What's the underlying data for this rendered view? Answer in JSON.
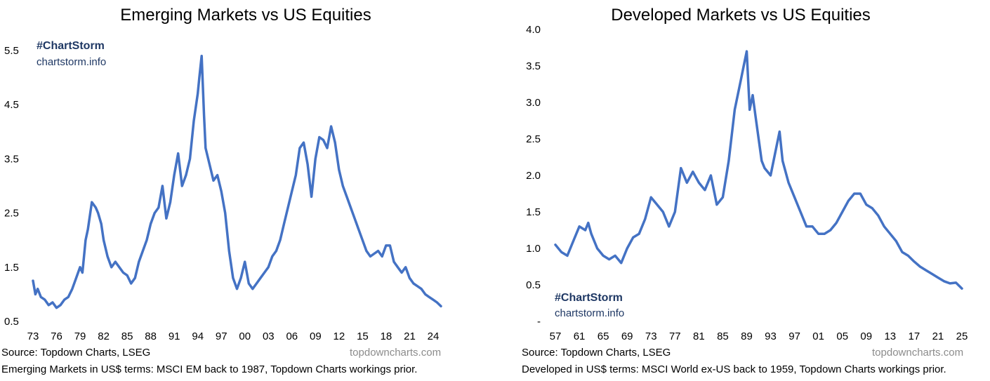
{
  "chart_data": [
    {
      "type": "line",
      "title": "Emerging Markets vs US Equities",
      "ylim": [
        0.5,
        5.5
      ],
      "y_ticks": [
        "0.5",
        "1.5",
        "2.5",
        "3.5",
        "4.5",
        "5.5"
      ],
      "x_ticks": [
        "73",
        "76",
        "79",
        "82",
        "85",
        "88",
        "91",
        "94",
        "97",
        "00",
        "03",
        "06",
        "09",
        "12",
        "15",
        "18",
        "21",
        "24"
      ],
      "grid": false,
      "color": "#4472c4",
      "series": [
        {
          "x": [
            1973.0,
            1973.3,
            1973.6,
            1974.0,
            1974.5,
            1975.0,
            1975.5,
            1976.0,
            1976.5,
            1977.0,
            1977.5,
            1978.0,
            1978.5,
            1979.0,
            1979.3,
            1979.7,
            1980.0,
            1980.5,
            1981.0,
            1981.3,
            1981.7,
            1982.0,
            1982.5,
            1983.0,
            1983.5,
            1984.0,
            1984.5,
            1985.0,
            1985.5,
            1986.0,
            1986.5,
            1987.0,
            1987.5,
            1988.0,
            1988.5,
            1989.0,
            1989.5,
            1990.0,
            1990.5,
            1991.0,
            1991.5,
            1992.0,
            1992.5,
            1993.0,
            1993.5,
            1994.0,
            1994.2,
            1994.5,
            1994.8,
            1995.0,
            1995.5,
            1996.0,
            1996.5,
            1997.0,
            1997.5,
            1998.0,
            1998.5,
            1999.0,
            1999.5,
            2000.0,
            2000.5,
            2001.0,
            2001.5,
            2002.0,
            2002.5,
            2003.0,
            2003.5,
            2004.0,
            2004.5,
            2005.0,
            2005.5,
            2006.0,
            2006.5,
            2007.0,
            2007.5,
            2008.0,
            2008.5,
            2009.0,
            2009.5,
            2010.0,
            2010.5,
            2011.0,
            2011.5,
            2012.0,
            2012.5,
            2013.0,
            2013.5,
            2014.0,
            2014.5,
            2015.0,
            2015.5,
            2016.0,
            2016.5,
            2017.0,
            2017.5,
            2018.0,
            2018.5,
            2019.0,
            2019.5,
            2020.0,
            2020.5,
            2021.0,
            2021.5,
            2022.0,
            2022.5,
            2023.0,
            2023.5,
            2024.0,
            2024.5,
            2025.0
          ],
          "values": [
            1.25,
            1.0,
            1.1,
            0.95,
            0.9,
            0.8,
            0.85,
            0.75,
            0.8,
            0.9,
            0.95,
            1.1,
            1.3,
            1.5,
            1.4,
            2.0,
            2.2,
            2.7,
            2.6,
            2.5,
            2.3,
            2.0,
            1.7,
            1.5,
            1.6,
            1.5,
            1.4,
            1.35,
            1.2,
            1.3,
            1.6,
            1.8,
            2.0,
            2.3,
            2.5,
            2.6,
            3.0,
            2.4,
            2.7,
            3.2,
            3.6,
            3.0,
            3.2,
            3.5,
            4.2,
            4.7,
            5.0,
            5.4,
            4.3,
            3.7,
            3.4,
            3.1,
            3.2,
            2.9,
            2.5,
            1.8,
            1.3,
            1.1,
            1.3,
            1.6,
            1.2,
            1.1,
            1.2,
            1.3,
            1.4,
            1.5,
            1.7,
            1.8,
            2.0,
            2.3,
            2.6,
            2.9,
            3.2,
            3.7,
            3.8,
            3.4,
            2.8,
            3.5,
            3.9,
            3.85,
            3.7,
            4.1,
            3.8,
            3.3,
            3.0,
            2.8,
            2.6,
            2.4,
            2.2,
            2.0,
            1.8,
            1.7,
            1.75,
            1.8,
            1.7,
            1.9,
            1.9,
            1.6,
            1.5,
            1.4,
            1.5,
            1.3,
            1.2,
            1.15,
            1.1,
            1.0,
            0.95,
            0.9,
            0.85,
            0.78
          ]
        }
      ],
      "source": "Source: Topdown Charts, LSEG",
      "credit": "topdowncharts.com",
      "note": "Emerging Markets in US$ terms: MSCI EM back to 1987, Topdown Charts workings prior.",
      "hashtag": "#ChartStorm",
      "site": "chartstorm.info"
    },
    {
      "type": "line",
      "title": "Developed Markets vs US Equities",
      "ylim": [
        0,
        4.0
      ],
      "y_ticks": [
        "-",
        "0.5",
        "1.0",
        "1.5",
        "2.0",
        "2.5",
        "3.0",
        "3.5",
        "4.0"
      ],
      "x_ticks": [
        "57",
        "61",
        "65",
        "69",
        "73",
        "77",
        "81",
        "85",
        "89",
        "93",
        "97",
        "01",
        "05",
        "09",
        "13",
        "17",
        "21",
        "25"
      ],
      "grid": false,
      "color": "#4472c4",
      "series": [
        {
          "x": [
            1957.0,
            1958.0,
            1959.0,
            1960.0,
            1961.0,
            1962.0,
            1962.5,
            1963.0,
            1964.0,
            1965.0,
            1966.0,
            1967.0,
            1968.0,
            1969.0,
            1970.0,
            1971.0,
            1972.0,
            1973.0,
            1974.0,
            1975.0,
            1976.0,
            1977.0,
            1978.0,
            1979.0,
            1980.0,
            1981.0,
            1982.0,
            1983.0,
            1984.0,
            1985.0,
            1986.0,
            1987.0,
            1988.0,
            1988.5,
            1989.0,
            1989.5,
            1990.0,
            1990.5,
            1991.0,
            1991.5,
            1992.0,
            1993.0,
            1994.0,
            1994.5,
            1995.0,
            1996.0,
            1997.0,
            1998.0,
            1999.0,
            2000.0,
            2001.0,
            2002.0,
            2003.0,
            2004.0,
            2005.0,
            2006.0,
            2007.0,
            2008.0,
            2009.0,
            2010.0,
            2011.0,
            2012.0,
            2013.0,
            2014.0,
            2015.0,
            2016.0,
            2017.0,
            2018.0,
            2019.0,
            2020.0,
            2021.0,
            2022.0,
            2023.0,
            2024.0,
            2025.0
          ],
          "values": [
            1.05,
            0.95,
            0.9,
            1.1,
            1.3,
            1.25,
            1.35,
            1.2,
            1.0,
            0.9,
            0.85,
            0.9,
            0.8,
            1.0,
            1.15,
            1.2,
            1.4,
            1.7,
            1.6,
            1.5,
            1.3,
            1.5,
            2.1,
            1.9,
            2.05,
            1.9,
            1.8,
            2.0,
            1.6,
            1.7,
            2.2,
            2.9,
            3.3,
            3.5,
            3.7,
            2.9,
            3.1,
            2.8,
            2.5,
            2.2,
            2.1,
            2.0,
            2.4,
            2.6,
            2.2,
            1.9,
            1.7,
            1.5,
            1.3,
            1.3,
            1.2,
            1.2,
            1.25,
            1.35,
            1.5,
            1.65,
            1.75,
            1.75,
            1.6,
            1.55,
            1.45,
            1.3,
            1.2,
            1.1,
            0.95,
            0.9,
            0.82,
            0.75,
            0.7,
            0.65,
            0.6,
            0.55,
            0.52,
            0.53,
            0.45
          ]
        }
      ],
      "source": "Source: Topdown Charts, LSEG",
      "credit": "topdowncharts.com",
      "note": "Developed in US$ terms: MSCI World ex-US back to 1959, Topdown Charts workings prior.",
      "hashtag": "#ChartStorm",
      "site": "chartstorm.info"
    }
  ]
}
